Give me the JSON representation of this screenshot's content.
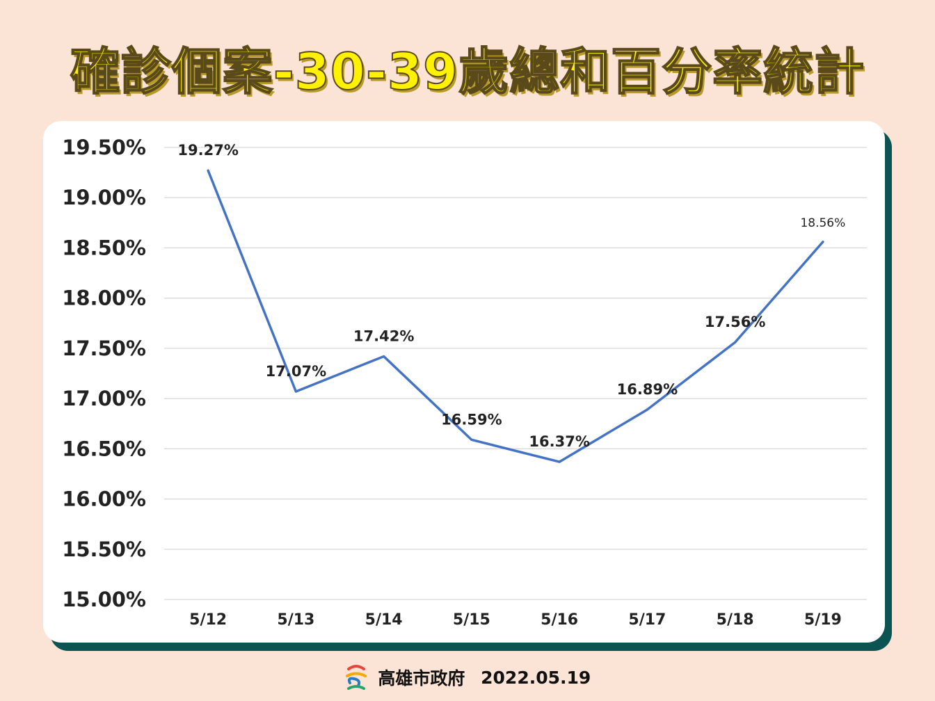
{
  "title": "確診個案-30-39歲總和百分率統計",
  "footer": {
    "org": "高雄市政府",
    "date": "2022.05.19"
  },
  "colors": {
    "background": "#fbe3d6",
    "title_fill": "#fff200",
    "card": "#ffffff",
    "card_shadow": "#0b5452",
    "line": "#4472c4",
    "grid": "#d9d9d9"
  },
  "chart_data": {
    "type": "line",
    "categories": [
      "5/12",
      "5/13",
      "5/14",
      "5/15",
      "5/16",
      "5/17",
      "5/18",
      "5/19"
    ],
    "series": [
      {
        "values": [
          19.27,
          17.07,
          17.42,
          16.59,
          16.37,
          16.89,
          17.56,
          18.56
        ],
        "labels": [
          "19.27%",
          "17.07%",
          "17.42%",
          "16.59%",
          "16.37%",
          "16.89%",
          "17.56%",
          "18.56%"
        ]
      }
    ],
    "ylim": [
      15.0,
      19.5
    ],
    "yticks": [
      "15.00%",
      "15.50%",
      "16.00%",
      "16.50%",
      "17.00%",
      "17.50%",
      "18.00%",
      "18.50%",
      "19.00%",
      "19.50%"
    ],
    "grid": true,
    "legend": "none"
  }
}
